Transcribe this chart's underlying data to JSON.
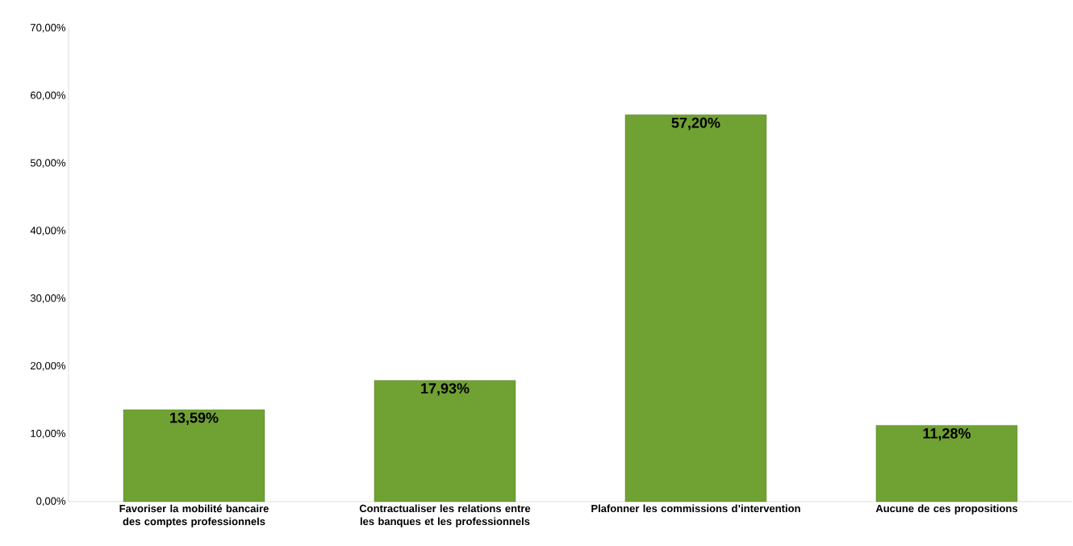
{
  "chart_data": {
    "type": "bar",
    "categories": [
      "Favoriser la mobilité bancaire des comptes professionnels",
      "Contractualiser les relations entre les banques et les professionnels",
      "Plafonner les commissions d’intervention",
      "Aucune de ces propositions"
    ],
    "values": [
      13.59,
      17.93,
      57.2,
      11.28
    ],
    "value_labels": [
      "13,59%",
      "17,93%",
      "57,20%",
      "11,28%"
    ],
    "color": "#70a133",
    "ylim": [
      0,
      70
    ],
    "yticks": [
      {
        "value": 0,
        "label": "0,00%"
      },
      {
        "value": 10,
        "label": "10,00%"
      },
      {
        "value": 20,
        "label": "20,00%"
      },
      {
        "value": 30,
        "label": "30,00%"
      },
      {
        "value": 40,
        "label": "40,00%"
      },
      {
        "value": 50,
        "label": "50,00%"
      },
      {
        "value": 60,
        "label": "60,00%"
      },
      {
        "value": 70,
        "label": "70,00%"
      }
    ]
  }
}
